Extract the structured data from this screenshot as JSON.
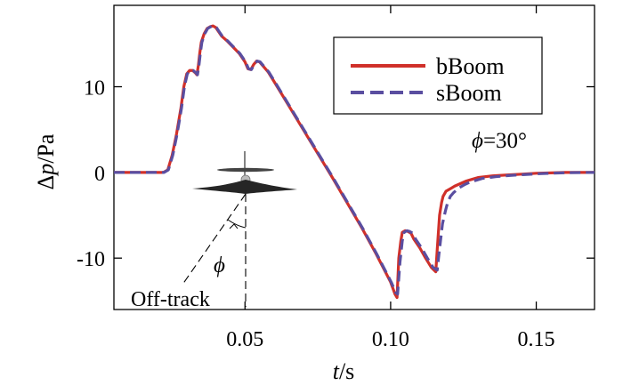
{
  "chart_data": {
    "type": "line",
    "title": "",
    "xlabel": {
      "italic": "t",
      "rest": "/s"
    },
    "ylabel": {
      "prefix": "Δ",
      "italic": "p",
      "rest": "/Pa"
    },
    "xlim": [
      0.005,
      0.17
    ],
    "ylim": [
      -16,
      19.5
    ],
    "xticks": [
      0.05,
      0.1,
      0.15
    ],
    "xtick_labels": [
      "0.05",
      "0.10",
      "0.15"
    ],
    "yticks": [
      -10,
      0,
      10
    ],
    "ytick_labels": [
      "-10",
      "0",
      "10"
    ],
    "grid": false,
    "legend": {
      "placement": "top-right"
    },
    "annotations": {
      "phi_value": {
        "symbol": "ϕ",
        "text": "=30°"
      },
      "phi_symbol": "ϕ",
      "off_track": "Off-track"
    },
    "series": [
      {
        "name": "bBoom",
        "color": "#d0302a",
        "style": "solid",
        "x": [
          0.005,
          0.022,
          0.0235,
          0.025,
          0.0265,
          0.028,
          0.029,
          0.03,
          0.031,
          0.032,
          0.033,
          0.0335,
          0.034,
          0.0345,
          0.035,
          0.036,
          0.037,
          0.038,
          0.039,
          0.04,
          0.041,
          0.042,
          0.044,
          0.046,
          0.048,
          0.05,
          0.051,
          0.052,
          0.053,
          0.054,
          0.055,
          0.056,
          0.058,
          0.06,
          0.065,
          0.07,
          0.075,
          0.08,
          0.085,
          0.09,
          0.095,
          0.1,
          0.1015,
          0.1022,
          0.1028,
          0.1035,
          0.104,
          0.105,
          0.106,
          0.107,
          0.108,
          0.11,
          0.112,
          0.114,
          0.1155,
          0.116,
          0.1168,
          0.1175,
          0.118,
          0.119,
          0.12,
          0.121,
          0.122,
          0.124,
          0.126,
          0.128,
          0.13,
          0.135,
          0.14,
          0.145,
          0.15,
          0.155,
          0.16,
          0.17
        ],
        "y": [
          0,
          0,
          0.3,
          2.0,
          4.5,
          7.5,
          10.0,
          11.5,
          11.9,
          11.9,
          11.6,
          11.4,
          12.5,
          14.0,
          15.2,
          16.2,
          16.8,
          17.0,
          17.1,
          16.9,
          16.4,
          15.9,
          15.3,
          14.6,
          13.9,
          12.9,
          12.1,
          12.0,
          12.6,
          13.0,
          12.9,
          12.5,
          11.7,
          10.6,
          7.8,
          5.0,
          2.2,
          -0.6,
          -3.5,
          -6.4,
          -9.5,
          -12.8,
          -14.2,
          -14.6,
          -10.0,
          -8.0,
          -7.0,
          -6.8,
          -6.9,
          -7.1,
          -7.8,
          -8.8,
          -10.0,
          -11.1,
          -11.6,
          -9.0,
          -5.0,
          -3.5,
          -2.8,
          -2.2,
          -2.0,
          -1.8,
          -1.6,
          -1.3,
          -1.0,
          -0.8,
          -0.6,
          -0.4,
          -0.3,
          -0.2,
          -0.1,
          -0.05,
          0,
          0
        ]
      },
      {
        "name": "sBoom",
        "color": "#5a4ea0",
        "style": "dashed",
        "x": [
          0.005,
          0.0222,
          0.0237,
          0.0252,
          0.0267,
          0.0282,
          0.0292,
          0.0302,
          0.0312,
          0.0322,
          0.0332,
          0.0337,
          0.0342,
          0.0347,
          0.0352,
          0.0362,
          0.0372,
          0.0382,
          0.0392,
          0.0402,
          0.0412,
          0.0422,
          0.0442,
          0.0462,
          0.0482,
          0.0502,
          0.0512,
          0.0522,
          0.0532,
          0.0542,
          0.0552,
          0.0562,
          0.0582,
          0.0602,
          0.0652,
          0.0702,
          0.0752,
          0.0802,
          0.0852,
          0.0902,
          0.0952,
          0.1002,
          0.1017,
          0.1024,
          0.1032,
          0.104,
          0.1046,
          0.1056,
          0.1066,
          0.1076,
          0.1086,
          0.1106,
          0.1126,
          0.1146,
          0.116,
          0.1166,
          0.1178,
          0.1188,
          0.1195,
          0.1205,
          0.1215,
          0.1225,
          0.1235,
          0.1255,
          0.1275,
          0.1295,
          0.1315,
          0.136,
          0.141,
          0.146,
          0.151,
          0.156,
          0.161,
          0.17
        ],
        "y": [
          0,
          0,
          0.3,
          2.0,
          4.5,
          7.5,
          10.0,
          11.5,
          11.9,
          11.9,
          11.6,
          11.4,
          12.5,
          14.0,
          15.2,
          16.2,
          16.8,
          17.0,
          17.1,
          16.9,
          16.4,
          15.9,
          15.3,
          14.6,
          13.9,
          12.9,
          12.1,
          12.0,
          12.6,
          13.0,
          12.9,
          12.5,
          11.7,
          10.6,
          7.8,
          5.0,
          2.2,
          -0.6,
          -3.5,
          -6.4,
          -9.5,
          -12.8,
          -14.0,
          -14.2,
          -10.5,
          -8.0,
          -7.0,
          -6.8,
          -6.9,
          -7.1,
          -7.8,
          -8.8,
          -10.0,
          -11.1,
          -11.4,
          -9.5,
          -6.0,
          -4.5,
          -3.6,
          -2.8,
          -2.4,
          -2.1,
          -1.8,
          -1.4,
          -1.1,
          -0.9,
          -0.7,
          -0.5,
          -0.35,
          -0.25,
          -0.15,
          -0.08,
          -0.03,
          0
        ]
      }
    ]
  }
}
